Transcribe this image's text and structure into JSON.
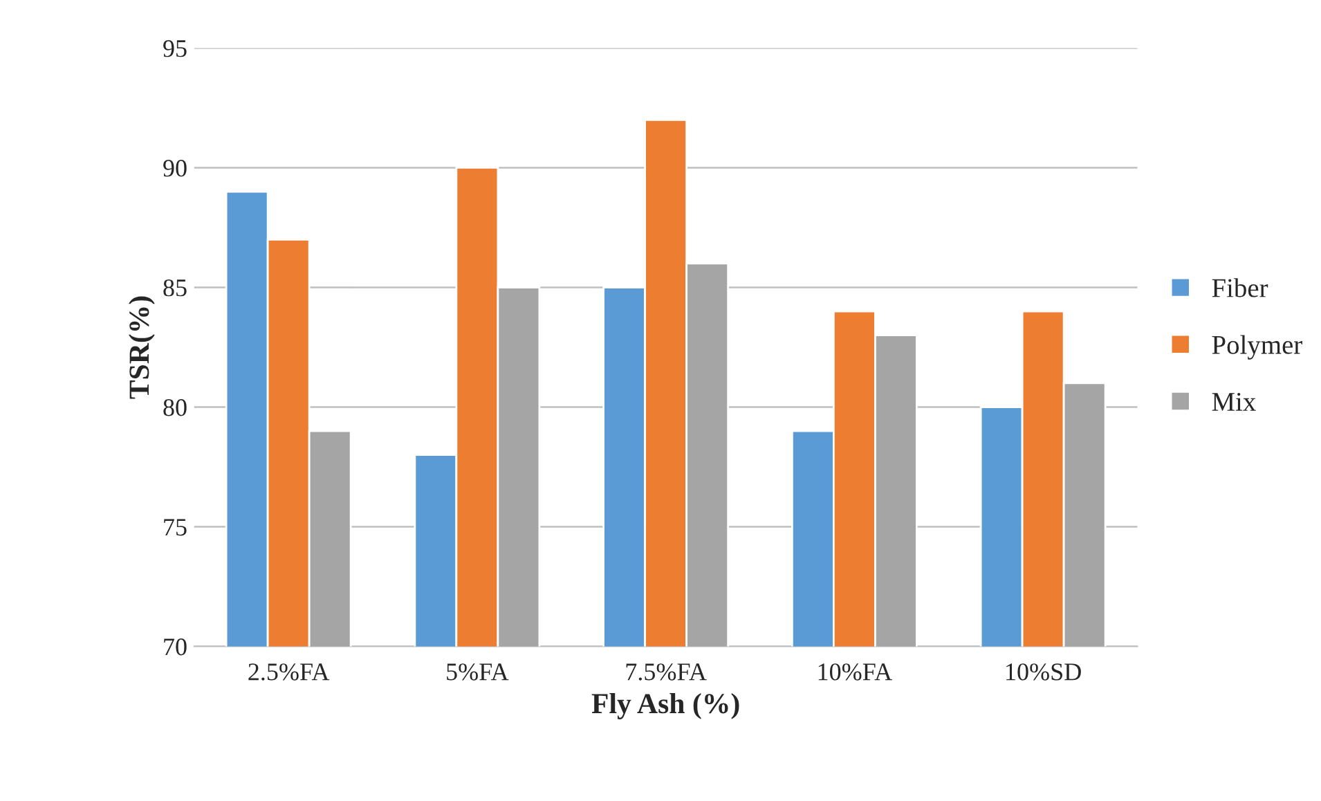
{
  "chart_data": {
    "type": "bar",
    "xlabel": "Fly Ash (%)",
    "ylabel": "TSR(%)",
    "categories": [
      "2.5%FA",
      "5%FA",
      "7.5%FA",
      "10%FA",
      "10%SD"
    ],
    "series": [
      {
        "name": "Fiber",
        "color": "#5b9bd5",
        "values": [
          89,
          78,
          85,
          79,
          80
        ]
      },
      {
        "name": "Polymer",
        "color": "#ed7d31",
        "values": [
          87,
          90,
          92,
          84,
          84
        ]
      },
      {
        "name": "Mix",
        "color": "#a5a5a5",
        "values": [
          79,
          85,
          86,
          83,
          81
        ]
      }
    ],
    "ylim": [
      70,
      95
    ],
    "yticks": [
      70,
      75,
      80,
      85,
      90,
      95
    ],
    "grid": "y",
    "legend": "right"
  }
}
